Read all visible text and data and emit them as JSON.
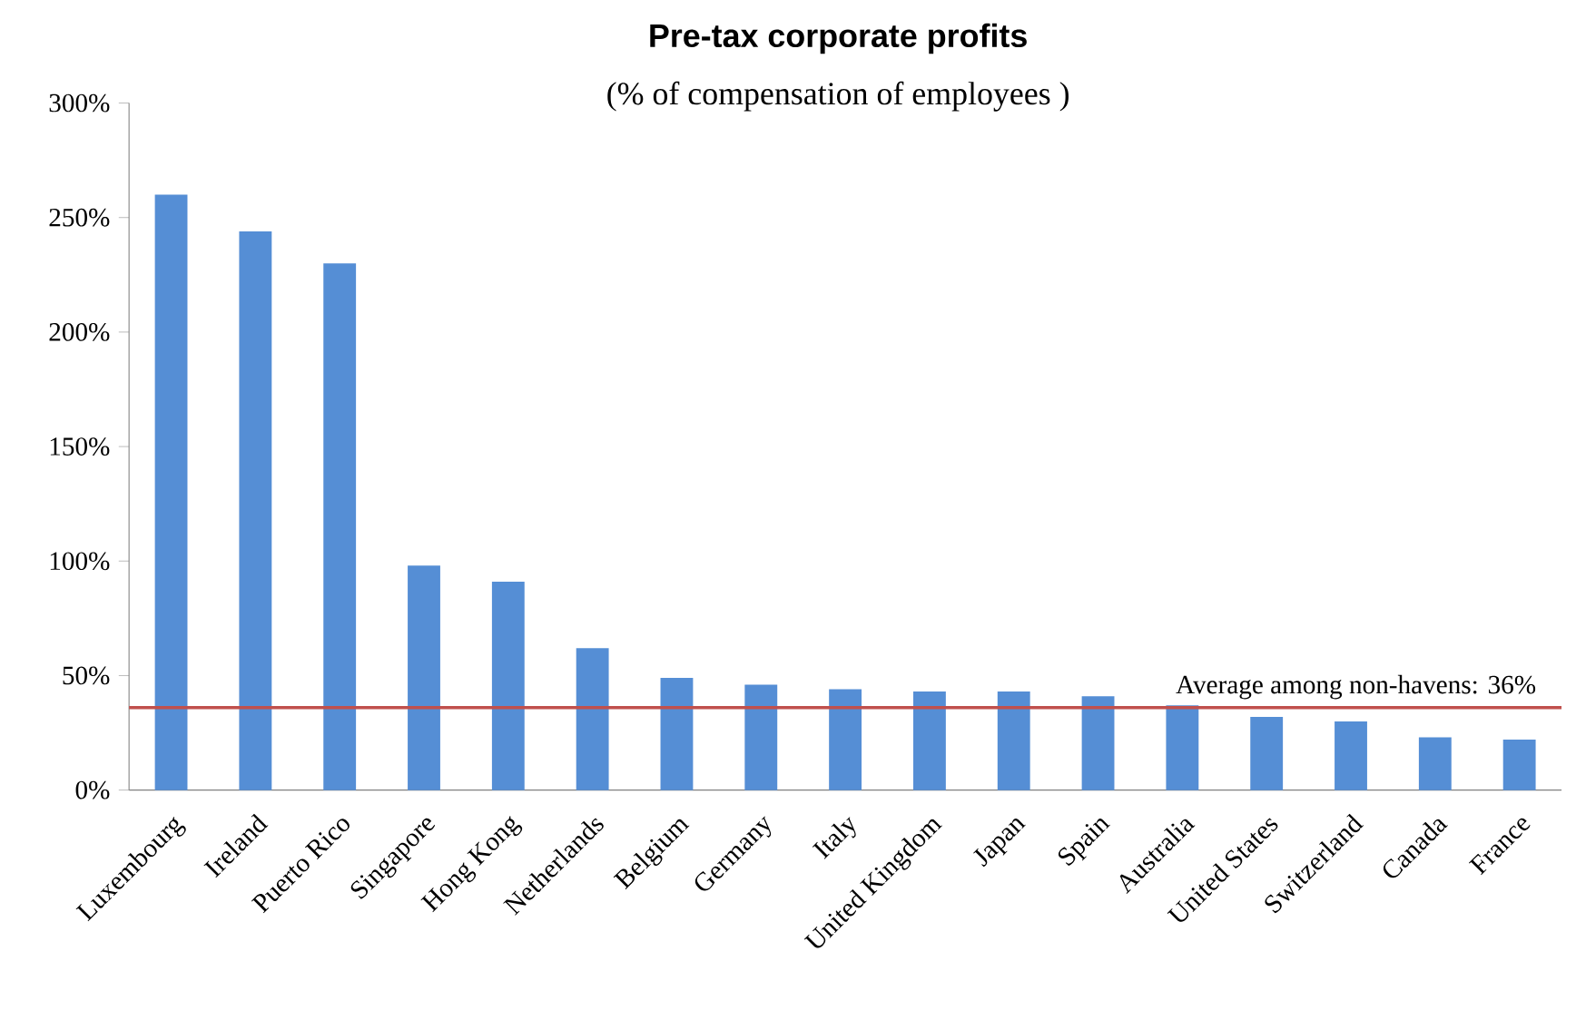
{
  "chart_data": {
    "type": "bar",
    "title": "Pre-tax corporate profits",
    "subtitle": "(% of compensation of employees )",
    "categories": [
      "Luxembourg",
      "Ireland",
      "Puerto Rico",
      "Singapore",
      "Hong Kong",
      "Netherlands",
      "Belgium",
      "Germany",
      "Italy",
      "United Kingdom",
      "Japan",
      "Spain",
      "Australia",
      "United States",
      "Switzerland",
      "Canada",
      "France"
    ],
    "values": [
      260,
      244,
      230,
      98,
      91,
      62,
      49,
      46,
      44,
      43,
      43,
      41,
      37,
      32,
      30,
      23,
      22
    ],
    "color": "#558ed5",
    "ylim": [
      0,
      300
    ],
    "yticks": [
      {
        "value": 0,
        "label": "0%"
      },
      {
        "value": 50,
        "label": "50%"
      },
      {
        "value": 100,
        "label": "100%"
      },
      {
        "value": 150,
        "label": "150%"
      },
      {
        "value": 200,
        "label": "200%"
      },
      {
        "value": 250,
        "label": "250%"
      },
      {
        "value": 300,
        "label": "300%"
      }
    ],
    "ref_lines": [
      {
        "axis": "y",
        "value": 36,
        "label": "Average among non-havens: 36%",
        "color": "#c0504d"
      }
    ]
  }
}
